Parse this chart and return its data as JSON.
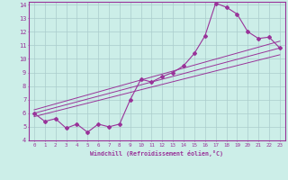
{
  "xlabel": "Windchill (Refroidissement éolien,°C)",
  "xlim": [
    -0.5,
    23.5
  ],
  "ylim": [
    4,
    14.2
  ],
  "xticks": [
    0,
    1,
    2,
    3,
    4,
    5,
    6,
    7,
    8,
    9,
    10,
    11,
    12,
    13,
    14,
    15,
    16,
    17,
    18,
    19,
    20,
    21,
    22,
    23
  ],
  "yticks": [
    4,
    5,
    6,
    7,
    8,
    9,
    10,
    11,
    12,
    13,
    14
  ],
  "bg_color": "#cceee8",
  "line_color": "#993399",
  "grid_color": "#aacccc",
  "line1_x": [
    0,
    1,
    2,
    3,
    4,
    5,
    6,
    7,
    8,
    9,
    10,
    11,
    12,
    13,
    14,
    15,
    16,
    17,
    18,
    19,
    20,
    21,
    22,
    23
  ],
  "line1_y": [
    6.0,
    5.4,
    5.6,
    4.9,
    5.2,
    4.6,
    5.2,
    5.0,
    5.2,
    7.0,
    8.5,
    8.3,
    8.7,
    9.0,
    9.5,
    10.4,
    11.7,
    14.1,
    13.8,
    13.3,
    12.0,
    11.5,
    11.6,
    10.8
  ],
  "line2_x": [
    0,
    23
  ],
  "line2_y": [
    6.0,
    10.8
  ],
  "line3_x": [
    0,
    23
  ],
  "line3_y": [
    5.75,
    10.3
  ],
  "line4_x": [
    0,
    23
  ],
  "line4_y": [
    6.25,
    11.3
  ]
}
